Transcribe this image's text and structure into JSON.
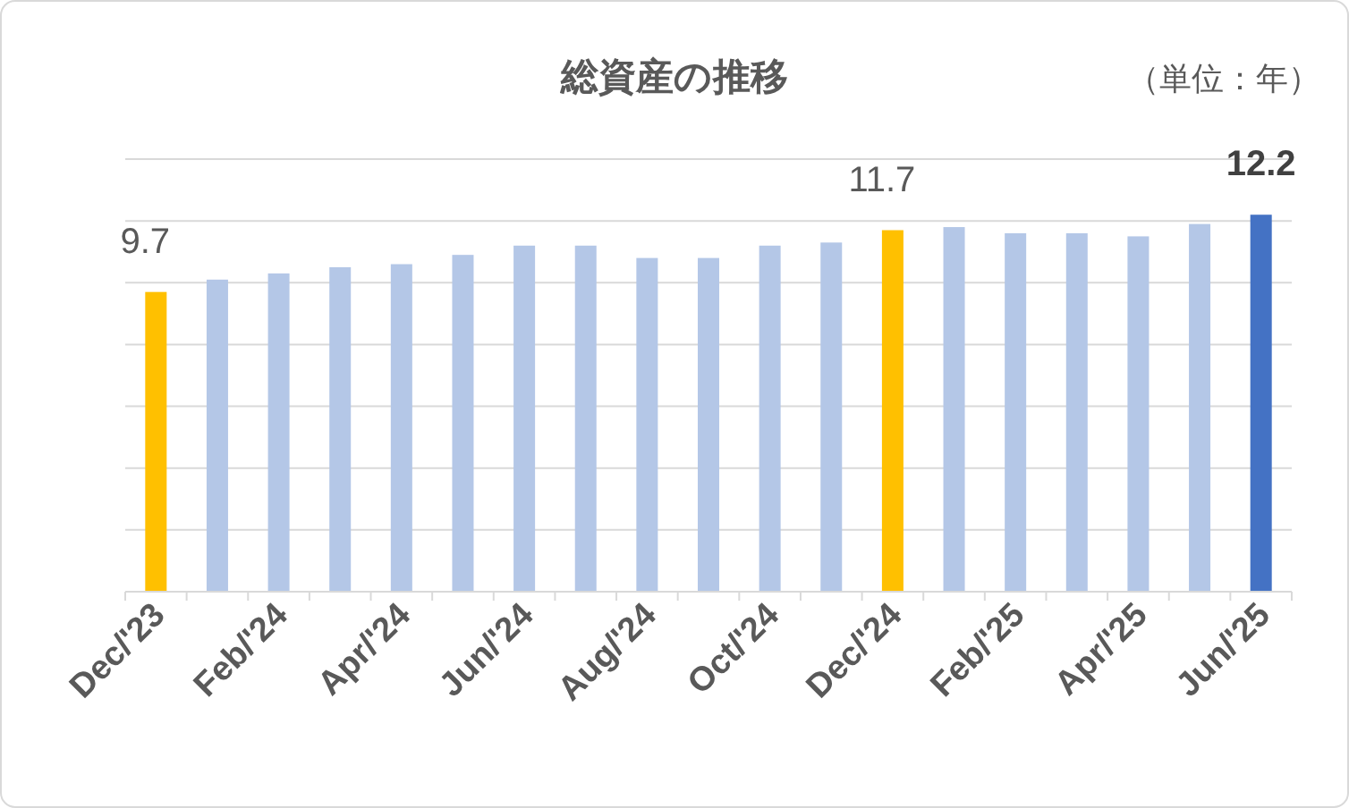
{
  "chart_data": {
    "type": "bar",
    "title": "総資産の推移",
    "annotations": [
      "（単位：年）"
    ],
    "categories": [
      "Dec/'23",
      null,
      "Feb/'24",
      null,
      "Apr/'24",
      null,
      "Jun/'24",
      null,
      "Aug/'24",
      null,
      "Oct/'24",
      null,
      "Dec/'24",
      null,
      "Feb/'25",
      null,
      "Apr/'25",
      null,
      "Jun/'25"
    ],
    "values": [
      9.7,
      10.1,
      10.3,
      10.5,
      10.6,
      10.9,
      11.2,
      11.2,
      10.8,
      10.8,
      11.2,
      11.3,
      11.7,
      11.8,
      11.6,
      11.6,
      11.5,
      11.9,
      12.2
    ],
    "colors": [
      "#ffc000",
      "#b4c7e7",
      "#b4c7e7",
      "#b4c7e7",
      "#b4c7e7",
      "#b4c7e7",
      "#b4c7e7",
      "#b4c7e7",
      "#b4c7e7",
      "#b4c7e7",
      "#b4c7e7",
      "#b4c7e7",
      "#ffc000",
      "#b4c7e7",
      "#b4c7e7",
      "#b4c7e7",
      "#b4c7e7",
      "#b4c7e7",
      "#4472c4"
    ],
    "value_labels": [
      "9.7",
      null,
      null,
      null,
      null,
      null,
      null,
      null,
      null,
      null,
      null,
      null,
      "11.7",
      null,
      null,
      null,
      null,
      null,
      "12.2"
    ],
    "ylim": [
      0,
      14
    ],
    "yticks": [
      {
        "value": 0,
        "label": null
      },
      {
        "value": 2,
        "label": null
      },
      {
        "value": 4,
        "label": null
      },
      {
        "value": 6,
        "label": null
      },
      {
        "value": 8,
        "label": null
      },
      {
        "value": 10,
        "label": null
      },
      {
        "value": 12,
        "label": null
      },
      {
        "value": 14,
        "label": null
      }
    ],
    "grid": "y",
    "tick_labels": "x"
  }
}
